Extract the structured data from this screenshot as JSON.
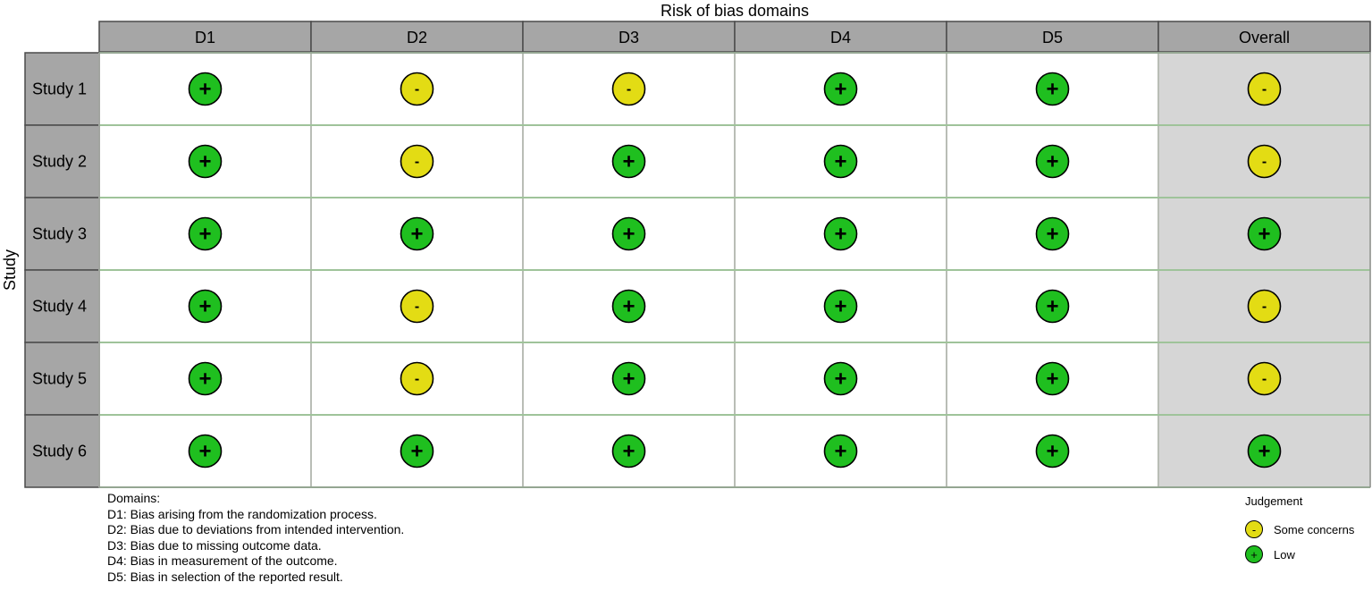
{
  "chart_data": {
    "type": "table",
    "title": "Risk of bias domains",
    "ylabel": "Study",
    "columns": [
      "D1",
      "D2",
      "D3",
      "D4",
      "D5",
      "Overall"
    ],
    "rows": [
      {
        "study": "Study 1",
        "judgements": [
          "Low",
          "Some concerns",
          "Some concerns",
          "Low",
          "Low",
          "Some concerns"
        ]
      },
      {
        "study": "Study 2",
        "judgements": [
          "Low",
          "Some concerns",
          "Low",
          "Low",
          "Low",
          "Some concerns"
        ]
      },
      {
        "study": "Study 3",
        "judgements": [
          "Low",
          "Low",
          "Low",
          "Low",
          "Low",
          "Low"
        ]
      },
      {
        "study": "Study 4",
        "judgements": [
          "Low",
          "Some concerns",
          "Low",
          "Low",
          "Low",
          "Some concerns"
        ]
      },
      {
        "study": "Study 5",
        "judgements": [
          "Low",
          "Some concerns",
          "Low",
          "Low",
          "Low",
          "Some concerns"
        ]
      },
      {
        "study": "Study 6",
        "judgements": [
          "Low",
          "Low",
          "Low",
          "Low",
          "Low",
          "Low"
        ]
      }
    ],
    "symbols": {
      "Low": "+",
      "Some concerns": "-"
    },
    "colors": {
      "Low": "#1fbf1f",
      "Some concerns": "#e3dc14",
      "header_fill": "#a6a6a6",
      "overall_fill": "#d6d6d6"
    }
  },
  "domains": {
    "heading": "Domains:",
    "items": [
      "D1: Bias arising from the randomization process.",
      "D2: Bias due to deviations from intended intervention.",
      "D3: Bias due to missing outcome data.",
      "D4: Bias in measurement of the outcome.",
      "D5: Bias in selection of the reported result."
    ]
  },
  "judgement_legend": {
    "title": "Judgement",
    "items": [
      {
        "label": "Some concerns",
        "symbol": "-"
      },
      {
        "label": "Low",
        "symbol": "+"
      }
    ]
  }
}
